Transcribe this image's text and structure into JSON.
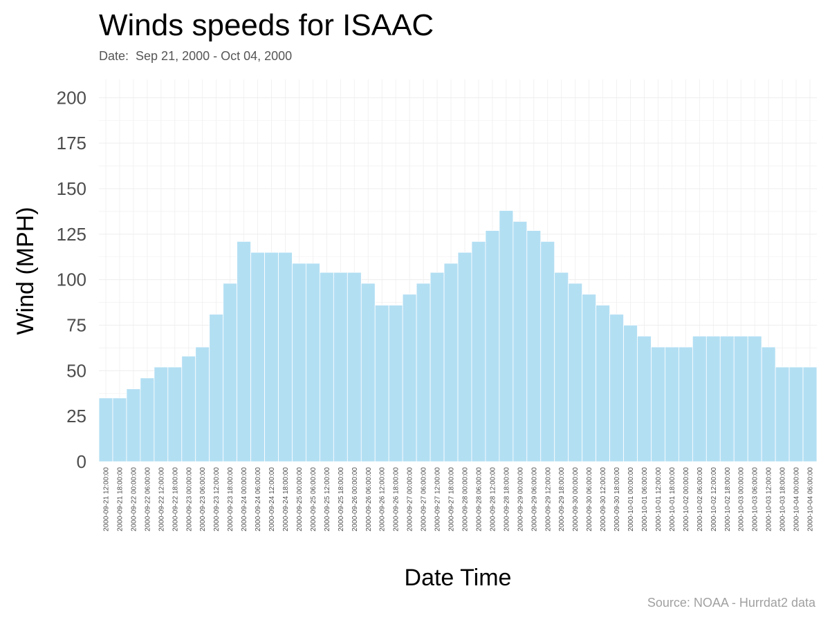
{
  "title": "Winds speeds for ISAAC",
  "subtitle": "Date:  Sep 21, 2000 - Oct 04, 2000",
  "caption": "Source: NOAA - Hurrdat2 data",
  "colors": {
    "bar": "#b3dff3",
    "bar_stroke": "#ffffff",
    "grid": "#eeeeee",
    "text": "#4d4d4d"
  },
  "chart_data": {
    "type": "bar",
    "title": "Winds speeds for ISAAC",
    "subtitle": "Date:  Sep 21, 2000 - Oct 04, 2000",
    "xlabel": "Date Time",
    "ylabel": "Wind (MPH)",
    "ylim": [
      0,
      210
    ],
    "yticks": [
      0,
      25,
      50,
      75,
      100,
      125,
      150,
      175,
      200
    ],
    "grid": true,
    "legend": "none",
    "categories": [
      "2000-09-21 12:00:00",
      "2000-09-21 18:00:00",
      "2000-09-22 00:00:00",
      "2000-09-22 06:00:00",
      "2000-09-22 12:00:00",
      "2000-09-22 18:00:00",
      "2000-09-23 00:00:00",
      "2000-09-23 06:00:00",
      "2000-09-23 12:00:00",
      "2000-09-23 18:00:00",
      "2000-09-24 00:00:00",
      "2000-09-24 06:00:00",
      "2000-09-24 12:00:00",
      "2000-09-24 18:00:00",
      "2000-09-25 00:00:00",
      "2000-09-25 06:00:00",
      "2000-09-25 12:00:00",
      "2000-09-25 18:00:00",
      "2000-09-26 00:00:00",
      "2000-09-26 06:00:00",
      "2000-09-26 12:00:00",
      "2000-09-26 18:00:00",
      "2000-09-27 00:00:00",
      "2000-09-27 06:00:00",
      "2000-09-27 12:00:00",
      "2000-09-27 18:00:00",
      "2000-09-28 00:00:00",
      "2000-09-28 06:00:00",
      "2000-09-28 12:00:00",
      "2000-09-28 18:00:00",
      "2000-09-29 00:00:00",
      "2000-09-29 06:00:00",
      "2000-09-29 12:00:00",
      "2000-09-29 18:00:00",
      "2000-09-30 00:00:00",
      "2000-09-30 06:00:00",
      "2000-09-30 12:00:00",
      "2000-09-30 18:00:00",
      "2000-10-01 00:00:00",
      "2000-10-01 06:00:00",
      "2000-10-01 12:00:00",
      "2000-10-01 18:00:00",
      "2000-10-02 00:00:00",
      "2000-10-02 06:00:00",
      "2000-10-02 12:00:00",
      "2000-10-02 18:00:00",
      "2000-10-03 00:00:00",
      "2000-10-03 06:00:00",
      "2000-10-03 12:00:00",
      "2000-10-03 18:00:00",
      "2000-10-04 00:00:00",
      "2000-10-04 06:00:00"
    ],
    "values": [
      35,
      35,
      40,
      46,
      52,
      52,
      58,
      63,
      81,
      98,
      121,
      115,
      115,
      115,
      109,
      109,
      104,
      104,
      104,
      98,
      86,
      86,
      92,
      98,
      104,
      109,
      115,
      121,
      127,
      138,
      132,
      127,
      121,
      104,
      98,
      92,
      86,
      81,
      75,
      69,
      63,
      63,
      63,
      69,
      69,
      69,
      69,
      69,
      63,
      52,
      52,
      52
    ]
  }
}
